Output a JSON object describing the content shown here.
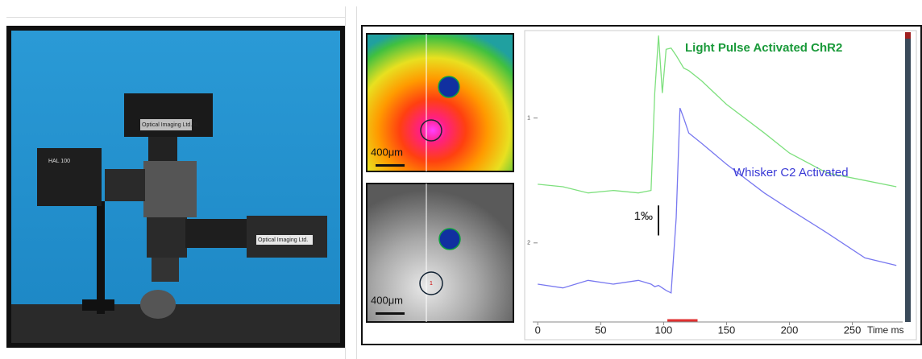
{
  "photo": {
    "lamp_label": "HAL 100",
    "camera_label": "Optical Imaging Ltd.",
    "camera2_label": "Optical Imaging Ltd."
  },
  "images": [
    {
      "scale_label": "400μm"
    },
    {
      "scale_label": "400μm",
      "roi_label": "1"
    }
  ],
  "chart_data": {
    "type": "line",
    "x": [
      0,
      20,
      40,
      60,
      80,
      90,
      93,
      96,
      99,
      102,
      106,
      110,
      113,
      116,
      120,
      130,
      150,
      180,
      200,
      230,
      260,
      285
    ],
    "series": [
      {
        "name": "Light Pulse Activated ChR2",
        "color": "#1a9a3a",
        "line_color": "#7ee07e",
        "values": [
          1.53,
          1.55,
          1.6,
          1.58,
          1.6,
          1.58,
          0.8,
          0.34,
          0.8,
          0.45,
          0.44,
          0.5,
          0.55,
          0.6,
          0.62,
          0.7,
          0.89,
          1.12,
          1.28,
          1.44,
          1.5,
          1.55
        ]
      },
      {
        "name": "Whisker C2 Activated",
        "color": "#3a3ad6",
        "line_color": "#7878f0",
        "values": [
          2.33,
          2.36,
          2.3,
          2.33,
          2.3,
          2.33,
          2.35,
          2.34,
          2.36,
          2.38,
          2.4,
          1.8,
          0.92,
          1.0,
          1.12,
          1.2,
          1.37,
          1.6,
          1.73,
          1.92,
          2.12,
          2.18
        ]
      }
    ],
    "xlim": [
      -4,
      290
    ],
    "xticks": [
      0,
      50,
      100,
      150,
      200,
      250
    ],
    "xlabel": "Time ms",
    "ylim": [
      2.62,
      0.3
    ],
    "yticks": [
      1,
      2
    ],
    "scale_bar": {
      "label": "1‰",
      "length": 0.24
    },
    "stimulus": [
      103,
      127
    ],
    "stimulus_color": "#e03030"
  }
}
